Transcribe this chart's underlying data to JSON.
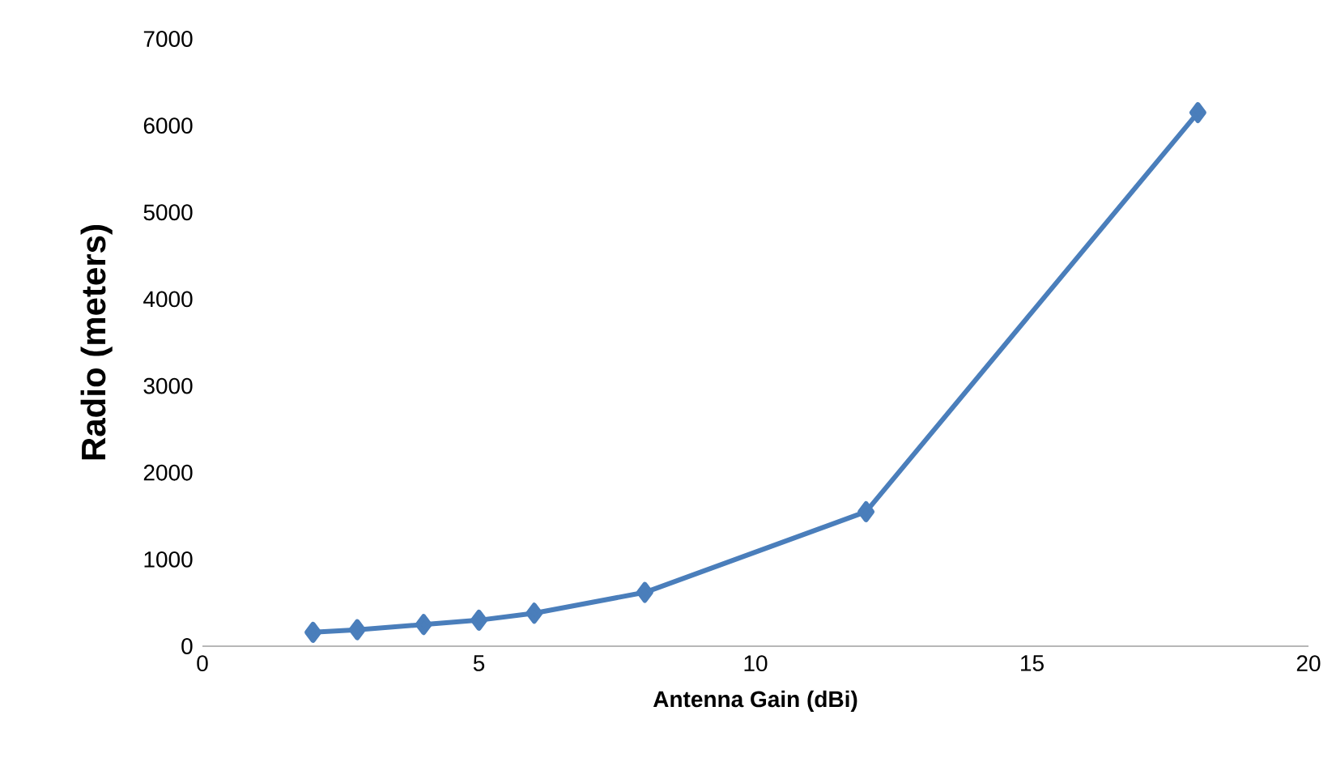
{
  "chart_data": {
    "type": "line",
    "xlabel": "Antenna Gain (dBi)",
    "ylabel": "Radio (meters)",
    "x": [
      2,
      2.8,
      4,
      5,
      6,
      8,
      12,
      18
    ],
    "series": [
      {
        "color": "#4a7ebb",
        "values": [
          160,
          190,
          250,
          300,
          380,
          620,
          1550,
          6150
        ]
      }
    ],
    "xlim": [
      0,
      20
    ],
    "xticks": [
      0,
      5,
      10,
      15,
      20
    ],
    "ylim": [
      0,
      7000
    ],
    "yticks": [
      0,
      1000,
      2000,
      3000,
      4000,
      5000,
      6000,
      7000
    ],
    "marker": "diamond",
    "line_style": "solid",
    "grid": false
  }
}
